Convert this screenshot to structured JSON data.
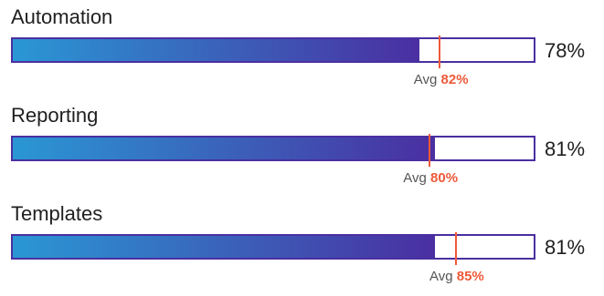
{
  "colors": {
    "gradient_start": "#2a97d4",
    "gradient_end": "#4a2fa1",
    "frame": "#4a2fa1",
    "avg_marker": "#ee5a3a"
  },
  "chart_data": {
    "type": "bar",
    "orientation": "horizontal",
    "xlim": [
      0,
      100
    ],
    "avg_prefix": "Avg",
    "categories": [
      "Automation",
      "Reporting",
      "Templates"
    ],
    "series": [
      {
        "values": [
          78,
          81,
          81
        ],
        "labels": [
          "78%",
          "81%",
          "81%"
        ]
      },
      {
        "values": [
          82,
          80,
          85
        ],
        "labels": [
          "82%",
          "80%",
          "85%"
        ]
      }
    ]
  }
}
